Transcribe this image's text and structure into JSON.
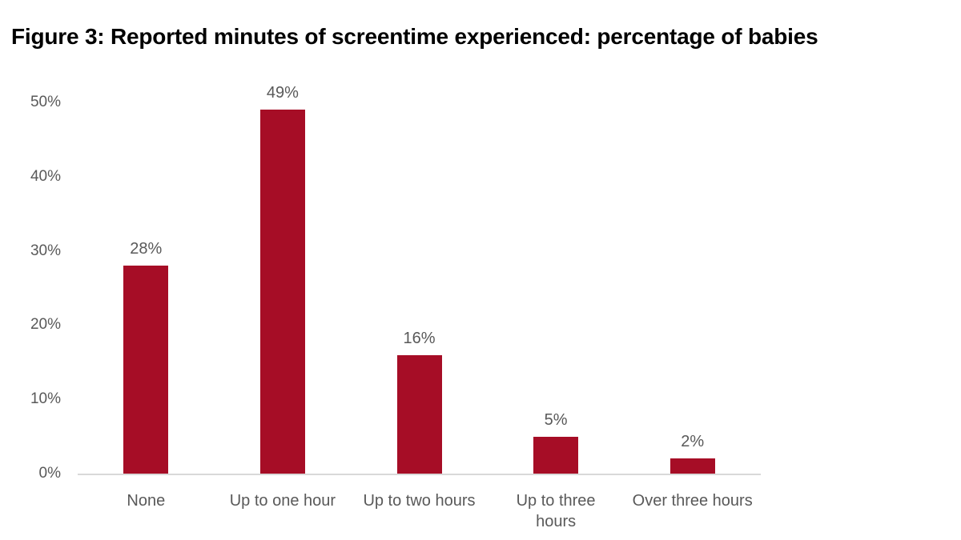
{
  "title": "Figure 3: Reported minutes of screentime experienced: percentage of babies",
  "chart_data": {
    "type": "bar",
    "title": "Figure 3: Reported minutes of screentime experienced: percentage of babies",
    "categories": [
      "None",
      "Up to one hour",
      "Up to two hours",
      "Up to three\nhours",
      "Over three hours"
    ],
    "values": [
      28,
      49,
      16,
      5,
      2
    ],
    "value_labels": [
      "28%",
      "49%",
      "16%",
      "5%",
      "2%"
    ],
    "xlabel": "",
    "ylabel": "",
    "ylim": [
      0,
      50
    ],
    "yticks": [
      0,
      10,
      20,
      30,
      40,
      50
    ],
    "ytick_labels": [
      "0%",
      "10%",
      "20%",
      "30%",
      "40%",
      "50%"
    ],
    "grid": false,
    "legend": false,
    "bar_color": "#A60D26",
    "text_color": "#595959",
    "axis_line_color": "#D9D9D9"
  }
}
